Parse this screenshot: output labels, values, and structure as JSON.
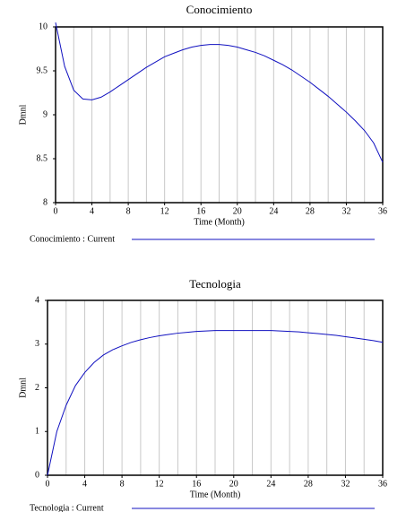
{
  "chart_data": [
    {
      "type": "line",
      "title": "Conocimiento",
      "ylabel": "Dmnl",
      "xlabel": "Time (Month)",
      "x": [
        0,
        1,
        2,
        3,
        4,
        5,
        6,
        7,
        8,
        9,
        10,
        11,
        12,
        13,
        14,
        15,
        16,
        17,
        18,
        19,
        20,
        21,
        22,
        23,
        24,
        25,
        26,
        27,
        28,
        29,
        30,
        31,
        32,
        33,
        34,
        35,
        36
      ],
      "series": [
        {
          "name": "Conocimiento : Current",
          "color": "#1010c0",
          "values": [
            10.05,
            9.55,
            9.28,
            9.18,
            9.17,
            9.2,
            9.26,
            9.33,
            9.4,
            9.47,
            9.54,
            9.6,
            9.66,
            9.7,
            9.74,
            9.77,
            9.79,
            9.8,
            9.8,
            9.79,
            9.77,
            9.74,
            9.71,
            9.67,
            9.62,
            9.57,
            9.51,
            9.44,
            9.37,
            9.29,
            9.21,
            9.12,
            9.03,
            8.93,
            8.82,
            8.68,
            8.46
          ]
        }
      ],
      "xlim": [
        0,
        36
      ],
      "xticks": [
        0,
        4,
        8,
        12,
        16,
        20,
        24,
        28,
        32,
        36
      ],
      "xgridlines": [
        2,
        4,
        6,
        8,
        10,
        12,
        14,
        16,
        18,
        20,
        22,
        24,
        26,
        28,
        30,
        32,
        34
      ],
      "ylim": [
        8,
        10
      ],
      "yticks": [
        10,
        9.5,
        9,
        8.5,
        8
      ]
    },
    {
      "type": "line",
      "title": "Tecnologia",
      "ylabel": "Dmnl",
      "xlabel": "Time (Month)",
      "x": [
        0,
        1,
        2,
        3,
        4,
        5,
        6,
        7,
        8,
        9,
        10,
        11,
        12,
        13,
        14,
        15,
        16,
        17,
        18,
        19,
        20,
        21,
        22,
        23,
        24,
        25,
        26,
        27,
        28,
        29,
        30,
        31,
        32,
        33,
        34,
        35,
        36
      ],
      "series": [
        {
          "name": "Tecnologia : Current",
          "color": "#1010c0",
          "values": [
            0,
            1.0,
            1.6,
            2.05,
            2.35,
            2.58,
            2.75,
            2.87,
            2.96,
            3.04,
            3.1,
            3.15,
            3.19,
            3.22,
            3.25,
            3.27,
            3.29,
            3.3,
            3.31,
            3.31,
            3.31,
            3.31,
            3.31,
            3.31,
            3.31,
            3.3,
            3.29,
            3.28,
            3.26,
            3.24,
            3.22,
            3.2,
            3.17,
            3.14,
            3.11,
            3.08,
            3.04
          ]
        }
      ],
      "xlim": [
        0,
        36
      ],
      "xticks": [
        0,
        4,
        8,
        12,
        16,
        20,
        24,
        28,
        32,
        36
      ],
      "xgridlines": [
        2,
        4,
        6,
        8,
        10,
        12,
        14,
        16,
        18,
        20,
        22,
        24,
        26,
        28,
        30,
        32,
        34
      ],
      "ylim": [
        0,
        4
      ],
      "yticks": [
        4,
        3,
        2,
        1,
        0
      ]
    }
  ]
}
